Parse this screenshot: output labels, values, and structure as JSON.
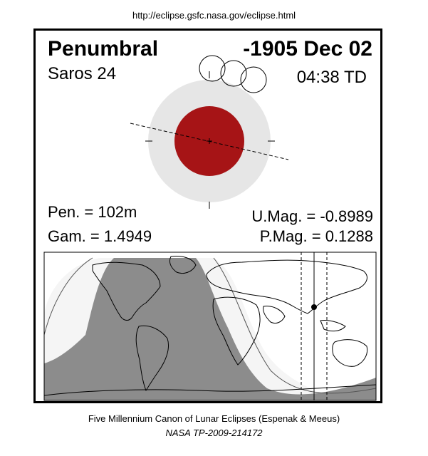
{
  "header": {
    "url": "http://eclipse.gsfc.nasa.gov/eclipse.html"
  },
  "eclipse": {
    "type": "Penumbral",
    "date": "-1905 Dec 02",
    "saros": "Saros  24",
    "time": "04:38 TD",
    "pen_duration": "Pen. = 102m",
    "gamma": "Gam. = 1.4949",
    "umbral_mag": "U.Mag. = -0.8989",
    "penumbral_mag": "P.Mag. = 0.1288"
  },
  "colors": {
    "umbra": "#a61416",
    "penumbra": "#e6e6e6",
    "night_region": "#8c8c8c",
    "visible_band": "#f5f5f5"
  },
  "footer": {
    "line1": "Five Millennium Canon of Lunar Eclipses (Espenak & Meeus)",
    "line2": "NASA TP-2009-214172"
  }
}
